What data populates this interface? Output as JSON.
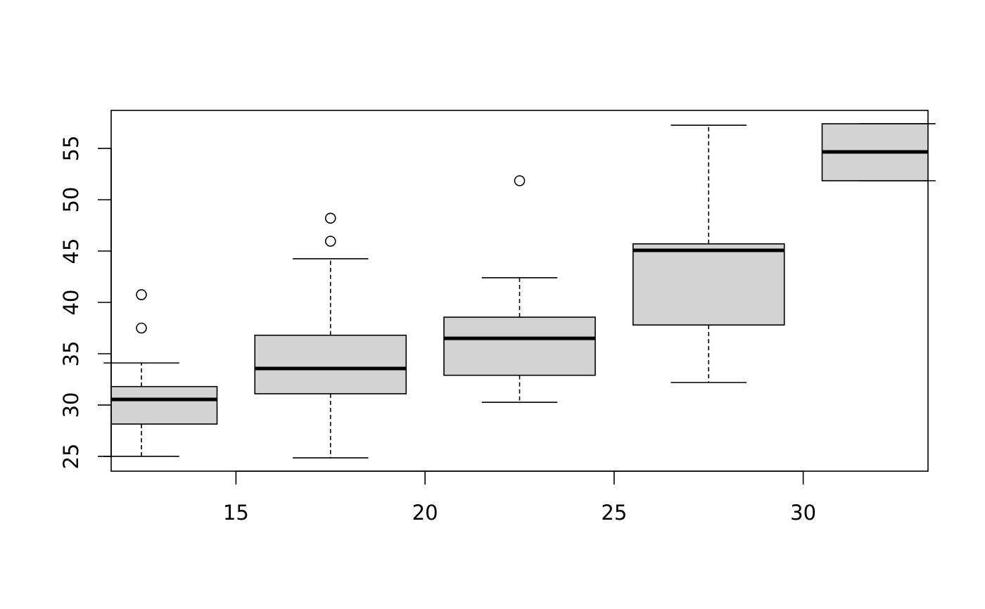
{
  "chart_data": {
    "type": "boxplot",
    "title": "",
    "xlabel": "",
    "ylabel": "",
    "xlim": [
      11.7,
      33.3
    ],
    "ylim": [
      23.56,
      58.7
    ],
    "x_ticks": [
      15,
      20,
      25,
      30
    ],
    "y_ticks": [
      25,
      30,
      35,
      40,
      45,
      50,
      55
    ],
    "box_width": 4,
    "box_fill": "#d3d3d3",
    "grid": false,
    "boxes": [
      {
        "x": 12.5,
        "lower_whisker": 25.0,
        "q1": 28.15,
        "median": 30.55,
        "q3": 31.8,
        "upper_whisker": 34.1,
        "outliers": [
          37.5,
          40.75
        ]
      },
      {
        "x": 17.5,
        "lower_whisker": 24.86,
        "q1": 31.1,
        "median": 33.56,
        "q3": 36.8,
        "upper_whisker": 44.25,
        "outliers": [
          45.96,
          48.2
        ]
      },
      {
        "x": 22.5,
        "lower_whisker": 30.27,
        "q1": 32.9,
        "median": 36.5,
        "q3": 38.56,
        "upper_whisker": 42.4,
        "outliers": [
          51.85
        ]
      },
      {
        "x": 27.5,
        "lower_whisker": 32.2,
        "q1": 37.8,
        "median": 45.07,
        "q3": 45.7,
        "upper_whisker": 57.26,
        "outliers": []
      },
      {
        "x": 32.5,
        "lower_whisker": 51.85,
        "q1": 51.85,
        "median": 54.66,
        "q3": 57.4,
        "upper_whisker": 57.4,
        "outliers": []
      }
    ]
  }
}
